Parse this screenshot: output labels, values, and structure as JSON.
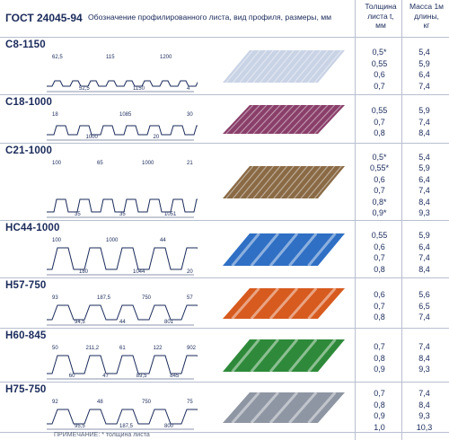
{
  "header": {
    "title": "ГОСТ 24045-94",
    "description": "Обозначение профилированного листа, вид профиля, размеры, мм",
    "thickness_l1": "Толщина",
    "thickness_l2": "листа t,",
    "thickness_l3": "мм",
    "mass_l1": "Масса 1м",
    "mass_l2": "длины,",
    "mass_l3": "кг"
  },
  "rows": [
    {
      "name": "С8-1150",
      "dims": [
        "62,5",
        "52,5",
        "115",
        "1150",
        "1200",
        "4"
      ],
      "values": [
        [
          "0,5*",
          "5,4"
        ],
        [
          "0,55",
          "5,9"
        ],
        [
          "0,6",
          "6,4"
        ],
        [
          "0,7",
          "7,4"
        ]
      ],
      "color": "#c9d3e6"
    },
    {
      "name": "С18-1000",
      "dims": [
        "18",
        "1000",
        "1085",
        "20",
        "30"
      ],
      "values": [
        [
          "0,55",
          "5,9"
        ],
        [
          "0,7",
          "7,4"
        ],
        [
          "0,8",
          "8,4"
        ]
      ],
      "color": "#8a3f6a"
    },
    {
      "name": "С21-1000",
      "dims": [
        "100",
        "35",
        "65",
        "35",
        "1000",
        "1051",
        "21"
      ],
      "values": [
        [
          "0,5*",
          "5,4"
        ],
        [
          "0,55*",
          "5,9"
        ],
        [
          "0,6",
          "6,4"
        ],
        [
          "0,7",
          "7,4"
        ],
        [
          "0,8*",
          "8,4"
        ],
        [
          "0,9*",
          "9,3"
        ]
      ],
      "color": "#8a6a45"
    },
    {
      "name": "НС44-1000",
      "dims": [
        "100",
        "180",
        "1000",
        "1044",
        "44",
        "20"
      ],
      "values": [
        [
          "0,55",
          "5,9"
        ],
        [
          "0,6",
          "6,4"
        ],
        [
          "0,7",
          "7,4"
        ],
        [
          "0,8",
          "8,4"
        ]
      ],
      "color": "#2f6fc4"
    },
    {
      "name": "Н57-750",
      "dims": [
        "93",
        "94,5",
        "187,5",
        "44",
        "750",
        "801",
        "57"
      ],
      "values": [
        [
          "0,6",
          "5,6"
        ],
        [
          "0,7",
          "6,5"
        ],
        [
          "0,8",
          "7,4"
        ]
      ],
      "color": "#d75a1e"
    },
    {
      "name": "Н60-845",
      "dims": [
        "50",
        "60",
        "211,2",
        "47",
        "61",
        "89,5",
        "122",
        "845",
        "902"
      ],
      "values": [
        [
          "0,7",
          "7,4"
        ],
        [
          "0,8",
          "8,4"
        ],
        [
          "0,9",
          "9,3"
        ]
      ],
      "color": "#2e8a3a"
    },
    {
      "name": "Н75-750",
      "dims": [
        "92",
        "95,5",
        "48",
        "187,5",
        "750",
        "800",
        "75"
      ],
      "values": [
        [
          "0,7",
          "7,4"
        ],
        [
          "0,8",
          "8,4"
        ],
        [
          "0,9",
          "9,3"
        ],
        [
          "1,0",
          "10,3"
        ]
      ],
      "color": "#8f96a3"
    }
  ],
  "footer": "ПРИМЕЧАНИЕ: * толщина листа"
}
